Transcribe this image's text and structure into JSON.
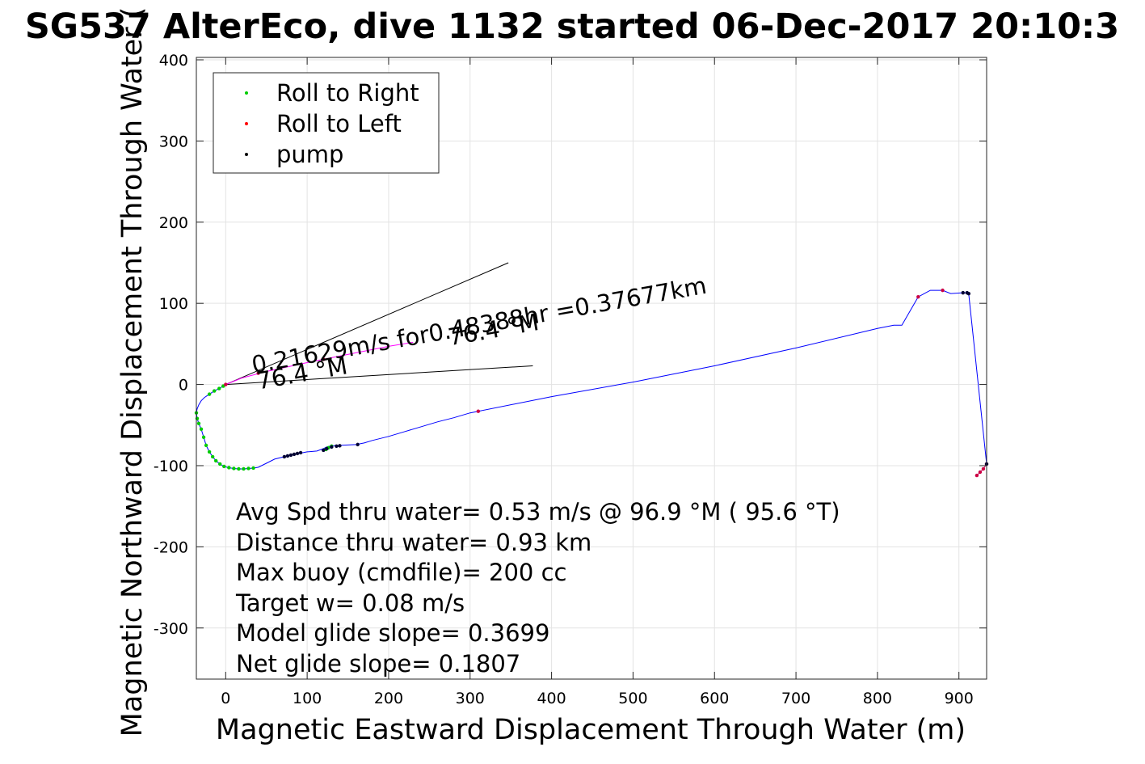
{
  "chart_data": {
    "type": "line",
    "title": "SG537 AlterEco, dive 1132 started 06-Dec-2017 20:10:3",
    "xlabel": "Magnetic Eastward Displacement Through Water (m)",
    "ylabel": "Magnetic Northward Displacement Through Water (",
    "xlim": [
      -36,
      934
    ],
    "ylim": [
      -363,
      403
    ],
    "xticks": [
      0,
      100,
      200,
      300,
      400,
      500,
      600,
      700,
      800,
      900
    ],
    "yticks": [
      -300,
      -200,
      -100,
      0,
      100,
      200,
      300,
      400
    ],
    "grid": true,
    "legend": {
      "placement": "top-left",
      "entries": [
        {
          "label": "Roll to Right",
          "color": "#00cc00"
        },
        {
          "label": "Roll to Left",
          "color": "#ff0000"
        },
        {
          "label": "pump",
          "color": "#000000"
        }
      ]
    },
    "series": [
      {
        "color": "#0000ff",
        "x": [
          0,
          -3,
          -8,
          -14,
          -20,
          -26,
          -30,
          -33,
          -35,
          -36,
          -35,
          -33,
          -30,
          -27,
          -24,
          -20,
          -16,
          -12,
          -7,
          -2,
          4,
          10,
          16,
          22,
          28,
          34,
          40,
          50,
          60,
          72,
          80,
          90,
          100,
          112,
          120,
          124,
          128,
          132,
          140,
          150,
          160,
          170,
          180,
          200,
          220,
          240,
          260,
          280,
          290,
          300,
          310,
          400,
          500,
          600,
          700,
          800,
          820,
          830,
          850,
          865,
          880,
          890,
          905,
          910,
          912,
          934
        ],
        "y": [
          0,
          -2,
          -5,
          -8,
          -12,
          -16,
          -20,
          -25,
          -30,
          -35,
          -42,
          -48,
          -55,
          -65,
          -75,
          -83,
          -89,
          -94,
          -98,
          -101,
          -102.5,
          -103.5,
          -104,
          -104,
          -103.5,
          -103,
          -102,
          -97,
          -92,
          -89,
          -87,
          -85,
          -83,
          -82,
          -79,
          -77,
          -76,
          -75.5,
          -75,
          -74.5,
          -74,
          -72,
          -69,
          -64,
          -58,
          -52,
          -46,
          -41,
          -38,
          -35,
          -33,
          -15,
          3,
          23,
          45,
          69,
          73,
          73,
          108,
          116,
          116,
          112,
          113,
          113,
          112,
          -98
        ]
      },
      {
        "color": "#ff00ff",
        "x": [
          0,
          20,
          50,
          100,
          150,
          200,
          230
        ],
        "y": [
          0,
          8,
          16,
          27,
          37,
          47,
          52
        ]
      },
      {
        "color": "#cc0066",
        "x": [
          934,
          930,
          926,
          922
        ],
        "y": [
          -98,
          -104,
          -108,
          -112
        ]
      }
    ],
    "markers": {
      "roll_right": {
        "color": "#00cc00",
        "x": [
          -36,
          -35,
          -33,
          -30,
          -27,
          -24,
          -20,
          -16,
          -12,
          -7,
          -2,
          4,
          10,
          16,
          22,
          28,
          34,
          -20,
          -14,
          -8,
          -3,
          123,
          126,
          130
        ],
        "y": [
          -35,
          -42,
          -48,
          -55,
          -65,
          -75,
          -83,
          -89,
          -94,
          -98,
          -101,
          -102.5,
          -103.5,
          -104,
          -104,
          -103.5,
          -103,
          -12,
          -8,
          -5,
          -2,
          -80,
          -78,
          -76
        ]
      },
      "roll_left": {
        "color": "#ff0000",
        "x": [
          0,
          40,
          120,
          310,
          850,
          880,
          922,
          926,
          930,
          934
        ],
        "y": [
          0,
          14,
          31,
          -33,
          108,
          116,
          -112,
          -108,
          -104,
          -98
        ],
        "dot_color": "#cc0044"
      },
      "pump": {
        "color": "#000000",
        "x": [
          72,
          76,
          80,
          84,
          88,
          92,
          120,
          124,
          130,
          136,
          140,
          162,
          905,
          910,
          912,
          934
        ],
        "y": [
          -89,
          -88,
          -87,
          -86,
          -85,
          -84,
          -81,
          -79,
          -77,
          -76,
          -75.5,
          -74,
          113,
          113,
          112,
          -98
        ],
        "dot_color": "#000033"
      }
    },
    "reference_lines": [
      {
        "x": [
          0,
          347
        ],
        "y": [
          0,
          150
        ],
        "color": "#000000"
      },
      {
        "x": [
          0,
          377
        ],
        "y": [
          0,
          23
        ],
        "color": "#000000"
      }
    ],
    "annotations": [
      {
        "text": "0.21629m/s for0.48388hr =0.37677km",
        "x": 34,
        "y": 14,
        "angle_deg": -10
      },
      {
        "text": "76.4 °M",
        "x": 275,
        "y": 48,
        "angle_deg": -10
      },
      {
        "text": "76.4 °M",
        "x": 40,
        "y": -6,
        "angle_deg": -10
      }
    ],
    "stats_text": [
      "Avg Spd thru water=  0.53 m/s @  96.9 °M ( 95.6 °T)",
      "Distance thru water=  0.93 km",
      "Max buoy (cmdfile)= 200 cc",
      "Target w= 0.08 m/s",
      "Model glide slope= 0.3699",
      "Net glide slope= 0.1807"
    ]
  }
}
